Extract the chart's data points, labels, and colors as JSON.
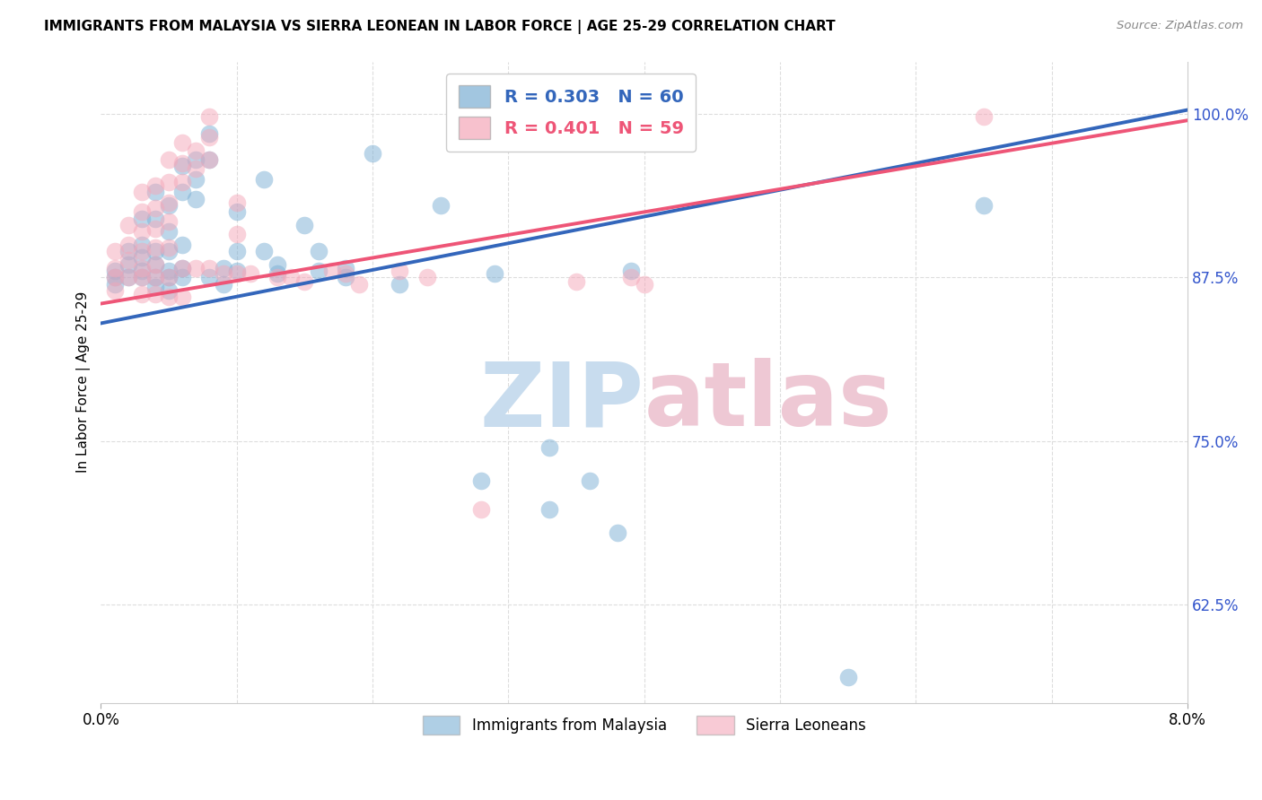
{
  "title": "IMMIGRANTS FROM MALAYSIA VS SIERRA LEONEAN IN LABOR FORCE | AGE 25-29 CORRELATION CHART",
  "source": "Source: ZipAtlas.com",
  "ylabel": "In Labor Force | Age 25-29",
  "ytick_labels": [
    "100.0%",
    "87.5%",
    "75.0%",
    "62.5%"
  ],
  "ytick_values": [
    1.0,
    0.875,
    0.75,
    0.625
  ],
  "xmin": 0.0,
  "xmax": 0.08,
  "ymin": 0.55,
  "ymax": 1.04,
  "legend_blue_r": "R = 0.303",
  "legend_blue_n": "N = 60",
  "legend_pink_r": "R = 0.401",
  "legend_pink_n": "N = 59",
  "legend_label_blue": "Immigrants from Malaysia",
  "legend_label_pink": "Sierra Leoneans",
  "blue_color": "#7BAFD4",
  "pink_color": "#F4A7B9",
  "blue_line_color": "#3366BB",
  "pink_line_color": "#EE5577",
  "blue_scatter": [
    [
      0.001,
      0.88
    ],
    [
      0.001,
      0.875
    ],
    [
      0.001,
      0.87
    ],
    [
      0.002,
      0.895
    ],
    [
      0.002,
      0.885
    ],
    [
      0.002,
      0.875
    ],
    [
      0.003,
      0.92
    ],
    [
      0.003,
      0.9
    ],
    [
      0.003,
      0.89
    ],
    [
      0.003,
      0.88
    ],
    [
      0.003,
      0.875
    ],
    [
      0.004,
      0.94
    ],
    [
      0.004,
      0.92
    ],
    [
      0.004,
      0.895
    ],
    [
      0.004,
      0.885
    ],
    [
      0.004,
      0.875
    ],
    [
      0.004,
      0.868
    ],
    [
      0.005,
      0.93
    ],
    [
      0.005,
      0.91
    ],
    [
      0.005,
      0.895
    ],
    [
      0.005,
      0.88
    ],
    [
      0.005,
      0.875
    ],
    [
      0.005,
      0.865
    ],
    [
      0.006,
      0.96
    ],
    [
      0.006,
      0.94
    ],
    [
      0.006,
      0.9
    ],
    [
      0.006,
      0.882
    ],
    [
      0.006,
      0.875
    ],
    [
      0.007,
      0.965
    ],
    [
      0.007,
      0.95
    ],
    [
      0.007,
      0.935
    ],
    [
      0.008,
      0.985
    ],
    [
      0.008,
      0.965
    ],
    [
      0.008,
      0.875
    ],
    [
      0.009,
      0.882
    ],
    [
      0.009,
      0.87
    ],
    [
      0.01,
      0.925
    ],
    [
      0.01,
      0.895
    ],
    [
      0.01,
      0.88
    ],
    [
      0.012,
      0.95
    ],
    [
      0.012,
      0.895
    ],
    [
      0.013,
      0.885
    ],
    [
      0.013,
      0.878
    ],
    [
      0.015,
      0.915
    ],
    [
      0.016,
      0.895
    ],
    [
      0.016,
      0.88
    ],
    [
      0.018,
      0.882
    ],
    [
      0.018,
      0.875
    ],
    [
      0.02,
      0.97
    ],
    [
      0.022,
      0.87
    ],
    [
      0.025,
      0.93
    ],
    [
      0.028,
      0.72
    ],
    [
      0.029,
      0.878
    ],
    [
      0.033,
      0.745
    ],
    [
      0.033,
      0.698
    ],
    [
      0.036,
      0.72
    ],
    [
      0.038,
      0.68
    ],
    [
      0.039,
      0.88
    ],
    [
      0.055,
      0.57
    ],
    [
      0.065,
      0.93
    ]
  ],
  "pink_scatter": [
    [
      0.001,
      0.895
    ],
    [
      0.001,
      0.882
    ],
    [
      0.001,
      0.875
    ],
    [
      0.001,
      0.865
    ],
    [
      0.002,
      0.915
    ],
    [
      0.002,
      0.9
    ],
    [
      0.002,
      0.888
    ],
    [
      0.002,
      0.875
    ],
    [
      0.003,
      0.94
    ],
    [
      0.003,
      0.925
    ],
    [
      0.003,
      0.91
    ],
    [
      0.003,
      0.895
    ],
    [
      0.003,
      0.882
    ],
    [
      0.003,
      0.875
    ],
    [
      0.003,
      0.862
    ],
    [
      0.004,
      0.945
    ],
    [
      0.004,
      0.928
    ],
    [
      0.004,
      0.912
    ],
    [
      0.004,
      0.898
    ],
    [
      0.004,
      0.885
    ],
    [
      0.004,
      0.875
    ],
    [
      0.004,
      0.862
    ],
    [
      0.005,
      0.965
    ],
    [
      0.005,
      0.948
    ],
    [
      0.005,
      0.932
    ],
    [
      0.005,
      0.918
    ],
    [
      0.005,
      0.898
    ],
    [
      0.005,
      0.875
    ],
    [
      0.005,
      0.86
    ],
    [
      0.006,
      0.978
    ],
    [
      0.006,
      0.962
    ],
    [
      0.006,
      0.948
    ],
    [
      0.006,
      0.882
    ],
    [
      0.006,
      0.86
    ],
    [
      0.007,
      0.972
    ],
    [
      0.007,
      0.958
    ],
    [
      0.007,
      0.882
    ],
    [
      0.008,
      0.998
    ],
    [
      0.008,
      0.982
    ],
    [
      0.008,
      0.965
    ],
    [
      0.008,
      0.882
    ],
    [
      0.009,
      0.878
    ],
    [
      0.01,
      0.932
    ],
    [
      0.01,
      0.908
    ],
    [
      0.01,
      0.878
    ],
    [
      0.011,
      0.878
    ],
    [
      0.013,
      0.875
    ],
    [
      0.014,
      0.875
    ],
    [
      0.015,
      0.872
    ],
    [
      0.017,
      0.88
    ],
    [
      0.018,
      0.878
    ],
    [
      0.019,
      0.87
    ],
    [
      0.022,
      0.88
    ],
    [
      0.024,
      0.875
    ],
    [
      0.028,
      0.698
    ],
    [
      0.035,
      0.872
    ],
    [
      0.039,
      0.875
    ],
    [
      0.04,
      0.87
    ],
    [
      0.065,
      0.998
    ]
  ],
  "blue_line_x": [
    0.0,
    0.08
  ],
  "blue_line_y": [
    0.84,
    1.003
  ],
  "pink_line_x": [
    0.0,
    0.08
  ],
  "pink_line_y": [
    0.855,
    0.995
  ],
  "watermark_zip_color": "#C8DCEE",
  "watermark_atlas_color": "#EEC8D4"
}
